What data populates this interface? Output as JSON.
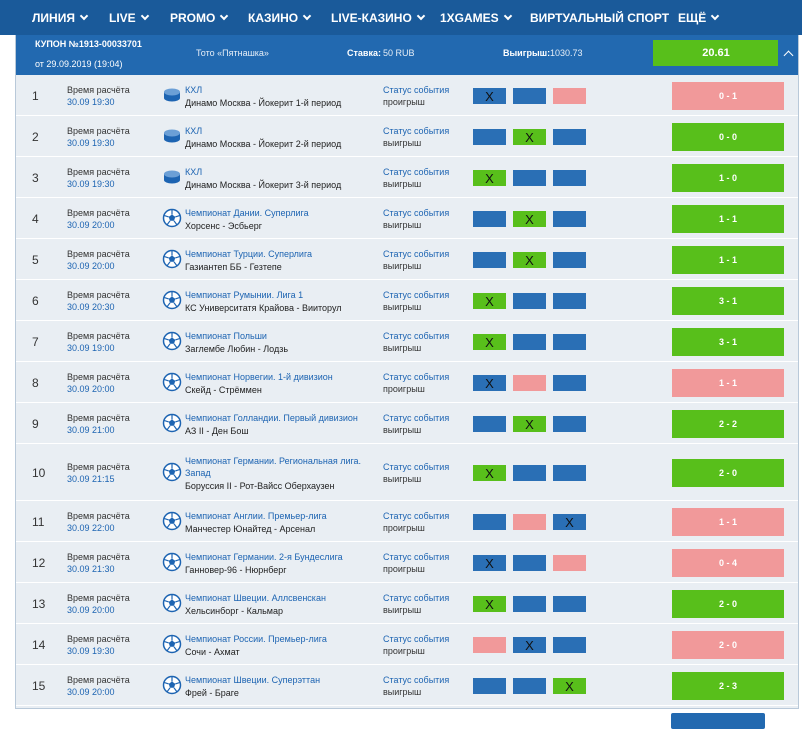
{
  "nav": [
    {
      "label": "ЛИНИЯ",
      "chevron": true
    },
    {
      "label": "LIVE",
      "chevron": true
    },
    {
      "label": "PROMO",
      "chevron": true
    },
    {
      "label": "КАЗИНО",
      "chevron": true
    },
    {
      "label": "LIVE-КАЗИНО",
      "chevron": true
    },
    {
      "label": "1XGAMES",
      "chevron": true
    },
    {
      "label": "ВИРТУАЛЬНЫЙ СПОРТ",
      "chevron": false
    },
    {
      "label": "ЕЩЁ",
      "chevron": true
    }
  ],
  "coupon": {
    "number": "КУПОН №1913-00033701",
    "date": "от 29.09.2019 (19:04)",
    "type": "Тото «Пятнашка»",
    "stake_label": "Ставка:",
    "stake_value": "50 RUB",
    "win_label": "Выигрыш:",
    "win_value": "1030.73",
    "coef": "20.61"
  },
  "labels": {
    "calc_time": "Время расчёта",
    "status": "Статус события",
    "pick_mark": "X"
  },
  "colors": {
    "blue": "#2a6fb5",
    "green": "#58bf1b",
    "pink": "#f1999a",
    "header": "#2269b0",
    "nav": "#1a5a9a"
  },
  "rows": [
    {
      "num": "1",
      "date": "30.09 19:30",
      "sport": "hockey-icon",
      "league": "КХЛ",
      "teams": "Динамо Москва - Йокерит 1-й период",
      "status": "проигрыш",
      "picks": [
        "X",
        "",
        ""
      ],
      "colors": [
        "blue",
        "blue",
        "pink"
      ],
      "score": "0 - 1",
      "result": "lose"
    },
    {
      "num": "2",
      "date": "30.09 19:30",
      "sport": "hockey-icon",
      "league": "КХЛ",
      "teams": "Динамо Москва - Йокерит 2-й период",
      "status": "выигрыш",
      "picks": [
        "",
        "X",
        ""
      ],
      "colors": [
        "blue",
        "green",
        "blue"
      ],
      "score": "0 - 0",
      "result": "win"
    },
    {
      "num": "3",
      "date": "30.09 19:30",
      "sport": "hockey-icon",
      "league": "КХЛ",
      "teams": "Динамо Москва - Йокерит 3-й период",
      "status": "выигрыш",
      "picks": [
        "X",
        "",
        ""
      ],
      "colors": [
        "green",
        "blue",
        "blue"
      ],
      "score": "1 - 0",
      "result": "win"
    },
    {
      "num": "4",
      "date": "30.09 20:00",
      "sport": "football-icon",
      "league": "Чемпионат Дании. Суперлига",
      "teams": "Хорсенс - Эсбьерг",
      "status": "выигрыш",
      "picks": [
        "",
        "X",
        ""
      ],
      "colors": [
        "blue",
        "green",
        "blue"
      ],
      "score": "1 - 1",
      "result": "win"
    },
    {
      "num": "5",
      "date": "30.09 20:00",
      "sport": "football-icon",
      "league": "Чемпионат Турции. Суперлига",
      "teams": "Газиантеп ББ - Гезтепе",
      "status": "выигрыш",
      "picks": [
        "",
        "X",
        ""
      ],
      "colors": [
        "blue",
        "green",
        "blue"
      ],
      "score": "1 - 1",
      "result": "win"
    },
    {
      "num": "6",
      "date": "30.09 20:30",
      "sport": "football-icon",
      "league": "Чемпионат Румынии. Лига 1",
      "teams": "КС Университатя Крайова - Вииторул",
      "status": "выигрыш",
      "picks": [
        "X",
        "",
        ""
      ],
      "colors": [
        "green",
        "blue",
        "blue"
      ],
      "score": "3 - 1",
      "result": "win"
    },
    {
      "num": "7",
      "date": "30.09 19:00",
      "sport": "football-icon",
      "league": "Чемпионат Польши",
      "teams": "Заглембе Любин - Лодзь",
      "status": "выигрыш",
      "picks": [
        "X",
        "",
        ""
      ],
      "colors": [
        "green",
        "blue",
        "blue"
      ],
      "score": "3 - 1",
      "result": "win"
    },
    {
      "num": "8",
      "date": "30.09 20:00",
      "sport": "football-icon",
      "league": "Чемпионат Норвегии. 1-й дивизион",
      "teams": "Скейд - Стрёммен",
      "status": "проигрыш",
      "picks": [
        "X",
        "",
        ""
      ],
      "colors": [
        "blue",
        "pink",
        "blue"
      ],
      "score": "1 - 1",
      "result": "lose"
    },
    {
      "num": "9",
      "date": "30.09 21:00",
      "sport": "football-icon",
      "league": "Чемпионат Голландии. Первый дивизион",
      "teams": "АЗ II - Ден Бош",
      "status": "выигрыш",
      "picks": [
        "",
        "X",
        ""
      ],
      "colors": [
        "blue",
        "green",
        "blue"
      ],
      "score": "2 - 2",
      "result": "win"
    },
    {
      "num": "10",
      "date": "30.09 21:15",
      "sport": "football-icon",
      "league": "Чемпионат Германии. Региональная лига. Запад",
      "teams": "Боруссия II - Рот-Вайсс Оберхаузен",
      "status": "выигрыш",
      "picks": [
        "X",
        "",
        ""
      ],
      "colors": [
        "green",
        "blue",
        "blue"
      ],
      "score": "2 - 0",
      "result": "win"
    },
    {
      "num": "11",
      "date": "30.09 22:00",
      "sport": "football-icon",
      "league": "Чемпионат Англии. Премьер-лига",
      "teams": "Манчестер Юнайтед - Арсенал",
      "status": "проигрыш",
      "picks": [
        "",
        "",
        "X"
      ],
      "colors": [
        "blue",
        "pink",
        "blue"
      ],
      "score": "1 - 1",
      "result": "lose"
    },
    {
      "num": "12",
      "date": "30.09 21:30",
      "sport": "football-icon",
      "league": "Чемпионат Германии. 2-я Бундеслига",
      "teams": "Ганновер-96 - Нюрнберг",
      "status": "проигрыш",
      "picks": [
        "X",
        "",
        ""
      ],
      "colors": [
        "blue",
        "blue",
        "pink"
      ],
      "score": "0 - 4",
      "result": "lose"
    },
    {
      "num": "13",
      "date": "30.09 20:00",
      "sport": "football-icon",
      "league": "Чемпионат Швеции. Аллсвенскан",
      "teams": "Хельсинборг - Кальмар",
      "status": "выигрыш",
      "picks": [
        "X",
        "",
        ""
      ],
      "colors": [
        "green",
        "blue",
        "blue"
      ],
      "score": "2 - 0",
      "result": "win"
    },
    {
      "num": "14",
      "date": "30.09 19:30",
      "sport": "football-icon",
      "league": "Чемпионат России. Премьер-лига",
      "teams": "Сочи - Ахмат",
      "status": "проигрыш",
      "picks": [
        "",
        "X",
        ""
      ],
      "colors": [
        "pink",
        "blue",
        "blue"
      ],
      "score": "2 - 0",
      "result": "lose"
    },
    {
      "num": "15",
      "date": "30.09 20:00",
      "sport": "football-icon",
      "league": "Чемпионат Швеции. Суперэттан",
      "teams": "Фрей - Браге",
      "status": "выигрыш",
      "picks": [
        "",
        "",
        "X"
      ],
      "colors": [
        "blue",
        "blue",
        "green"
      ],
      "score": "2 - 3",
      "result": "win"
    }
  ]
}
